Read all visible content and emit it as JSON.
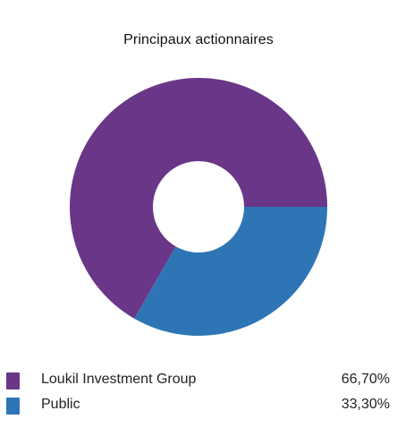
{
  "chart_data": {
    "type": "pie",
    "title": "Principaux actionnaires",
    "categories": [
      "Loukil Investment Group",
      "Public"
    ],
    "values": [
      66.7,
      33.3
    ],
    "value_labels": [
      "66,70%",
      "33,30%"
    ],
    "colors": [
      "#6a3688",
      "#2e75b6"
    ],
    "donut": true,
    "legend_position": "bottom"
  }
}
